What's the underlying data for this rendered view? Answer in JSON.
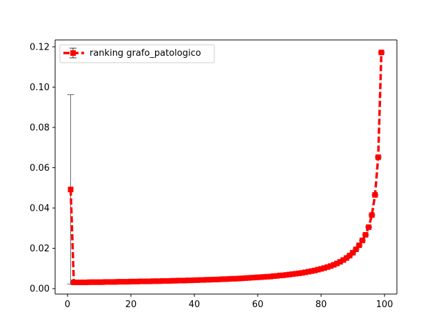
{
  "chart_data": {
    "type": "line",
    "title": "",
    "xlabel": "",
    "ylabel": "",
    "xlim": [
      -3.9,
      103.9
    ],
    "ylim": [
      -0.0027,
      0.1234
    ],
    "xticks": [
      0,
      20,
      40,
      60,
      80,
      100
    ],
    "xtick_labels": [
      "0",
      "20",
      "40",
      "60",
      "80",
      "100"
    ],
    "yticks": [
      0.0,
      0.02,
      0.04,
      0.06,
      0.08,
      0.1,
      0.12
    ],
    "ytick_labels": [
      "0.00",
      "0.02",
      "0.04",
      "0.06",
      "0.08",
      "0.10",
      "0.12"
    ],
    "grid": false,
    "legend_position": "upper-left",
    "series": [
      {
        "name": "ranking grafo_patologico",
        "color": "#ff0000",
        "line_style": "dashed",
        "marker": "square",
        "error_bar_color": "#000000",
        "x": [
          1,
          2,
          3,
          4,
          5,
          6,
          7,
          8,
          9,
          10,
          11,
          12,
          13,
          14,
          15,
          16,
          17,
          18,
          19,
          20,
          21,
          22,
          23,
          24,
          25,
          26,
          27,
          28,
          29,
          30,
          31,
          32,
          33,
          34,
          35,
          36,
          37,
          38,
          39,
          40,
          41,
          42,
          43,
          44,
          45,
          46,
          47,
          48,
          49,
          50,
          51,
          52,
          53,
          54,
          55,
          56,
          57,
          58,
          59,
          60,
          61,
          62,
          63,
          64,
          65,
          66,
          67,
          68,
          69,
          70,
          71,
          72,
          73,
          74,
          75,
          76,
          77,
          78,
          79,
          80,
          81,
          82,
          83,
          84,
          85,
          86,
          87,
          88,
          89,
          90,
          91,
          92,
          93,
          94,
          95,
          96,
          97,
          98,
          99
        ],
        "values": [
          0.0492,
          0.0031,
          0.0031,
          0.0031,
          0.0031,
          0.0031,
          0.0032,
          0.0032,
          0.0032,
          0.0032,
          0.0032,
          0.0033,
          0.0033,
          0.0033,
          0.0033,
          0.0034,
          0.0034,
          0.0034,
          0.0034,
          0.0035,
          0.0035,
          0.0035,
          0.0036,
          0.0036,
          0.0036,
          0.0036,
          0.0037,
          0.0037,
          0.0037,
          0.0038,
          0.0038,
          0.0038,
          0.0039,
          0.0039,
          0.004,
          0.004,
          0.004,
          0.0041,
          0.0041,
          0.0042,
          0.0042,
          0.0043,
          0.0043,
          0.0044,
          0.0044,
          0.0045,
          0.0045,
          0.0046,
          0.0047,
          0.0047,
          0.0048,
          0.0049,
          0.0049,
          0.005,
          0.0051,
          0.0052,
          0.0053,
          0.0054,
          0.0055,
          0.0056,
          0.0057,
          0.0058,
          0.0059,
          0.006,
          0.0062,
          0.0063,
          0.0065,
          0.0066,
          0.0068,
          0.007,
          0.0072,
          0.0074,
          0.0076,
          0.0078,
          0.0081,
          0.0084,
          0.0087,
          0.009,
          0.0094,
          0.0098,
          0.0102,
          0.0107,
          0.0112,
          0.0118,
          0.0125,
          0.0133,
          0.0142,
          0.0152,
          0.0164,
          0.0178,
          0.0195,
          0.0215,
          0.0239,
          0.0267,
          0.0305,
          0.0365,
          0.0465,
          0.0652,
          0.1172
        ],
        "errors": [
          0.047,
          0.0003,
          0.0003,
          0.0003,
          0.0003,
          0.0003,
          0.0003,
          0.0003,
          0.0003,
          0.0003,
          0.0003,
          0.0003,
          0.0003,
          0.0003,
          0.0003,
          0.0003,
          0.0003,
          0.0003,
          0.0003,
          0.0003,
          0.0003,
          0.0003,
          0.0003,
          0.0003,
          0.0003,
          0.0003,
          0.0003,
          0.0003,
          0.0003,
          0.0003,
          0.0003,
          0.0003,
          0.0003,
          0.0003,
          0.0003,
          0.0003,
          0.0003,
          0.0003,
          0.0003,
          0.0003,
          0.0003,
          0.0003,
          0.0003,
          0.0003,
          0.0003,
          0.0003,
          0.0003,
          0.0003,
          0.0003,
          0.0003,
          0.0003,
          0.0003,
          0.0003,
          0.0003,
          0.0003,
          0.0003,
          0.0003,
          0.0003,
          0.0003,
          0.0003,
          0.0003,
          0.0003,
          0.0003,
          0.0003,
          0.0003,
          0.0003,
          0.0003,
          0.0003,
          0.0003,
          0.0003,
          0.0003,
          0.0003,
          0.0003,
          0.0003,
          0.0003,
          0.0003,
          0.0003,
          0.0003,
          0.0003,
          0.0003,
          0.0003,
          0.0003,
          0.0003,
          0.0003,
          0.0003,
          0.0003,
          0.0003,
          0.0003,
          0.0003,
          0.0003,
          0.0003,
          0.0003,
          0.0003,
          0.0003,
          0.0003,
          0.0003,
          0.0003,
          0.0003,
          0.0003
        ]
      }
    ]
  }
}
